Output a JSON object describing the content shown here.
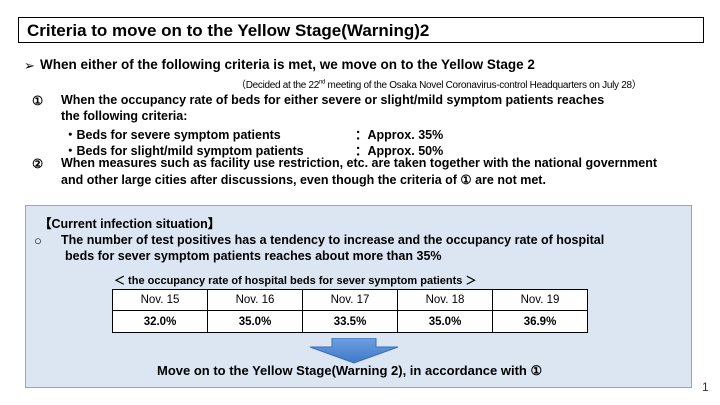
{
  "title": "Criteria to move on to the Yellow Stage(Warning)2",
  "main_bullet_symbol": "➢",
  "main_bullet_text": "When either of the following criteria is met, we move on to the Yellow Stage 2",
  "decided_pre": "（Decided at the 22",
  "decided_sup": "nd",
  "decided_post": " meeting of the Osaka Novel Coronavirus-control Headquarters on July 28）",
  "criteria": {
    "c1_num": "①",
    "c1_line1": "When the occupancy rate of beds for either severe or slight/mild symptom  patients reaches",
    "c1_line2": "the following criteria:",
    "c1_sub1_label": "・Beds for severe symptom patients",
    "c1_sub1_value": "：Approx. 35%",
    "c1_sub2_label": "・Beds for slight/mild symptom patients",
    "c1_sub2_value": "：Approx. 50%",
    "c2_num": "②",
    "c2_line1": "When measures such as facility use restriction, etc.  are taken together with the national government",
    "c2_line2": "and other large cities after discussions, even though the criteria of ① are not met."
  },
  "situation": {
    "heading": "【Current infection situation】",
    "bullet": "○",
    "line1": "The number of test positives has a tendency to increase and the occupancy rate of hospital",
    "line2": "beds for sever symptom patients reaches about more than 35%",
    "table_caption": "＜ the occupancy rate of hospital beds for sever symptom patients ＞",
    "dates": [
      "Nov. 15",
      "Nov. 16",
      "Nov. 17",
      "Nov. 18",
      "Nov. 19"
    ],
    "rates": [
      "32.0%",
      "35.0%",
      "33.5%",
      "35.0%",
      "36.9%"
    ],
    "conclusion": "Move on to the Yellow Stage(Warning 2), in accordance with ①"
  },
  "page_number": "1",
  "colors": {
    "panel_background": "#dce6f2",
    "panel_border": "#8ea9c8",
    "arrow_fill": "#4a86d4"
  }
}
